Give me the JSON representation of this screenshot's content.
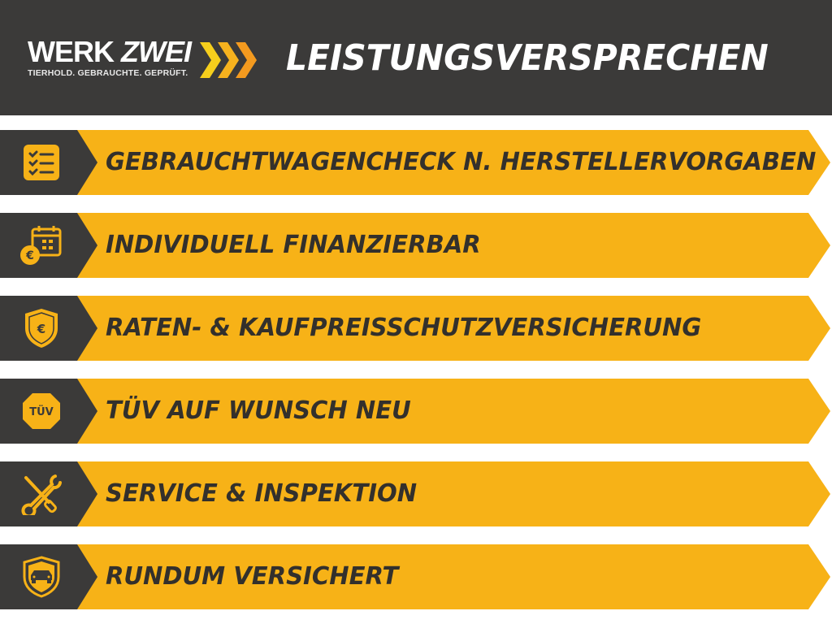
{
  "header": {
    "logo": {
      "word1": "WERK",
      "word2": "ZWEI",
      "tagline": "TIERHOLD. GEBRAUCHTE. GEPRÜFT."
    },
    "title": "LEISTUNGSVERSPRECHEN"
  },
  "colors": {
    "dark": "#3b3a39",
    "yellow": "#f7b217",
    "text": "#33302c"
  },
  "items": [
    {
      "label": "GEBRAUCHTWAGENCHECK N. HERSTELLERVORGABEN",
      "icon": "checklist-icon"
    },
    {
      "label": "INDIVIDUELL FINANZIERBAR",
      "icon": "calendar-euro-icon"
    },
    {
      "label": "RATEN- & KAUFPREISSCHUTZVERSICHERUNG",
      "icon": "shield-euro-icon"
    },
    {
      "label": "TÜV AUF WUNSCH NEU",
      "icon": "tuev-badge-icon",
      "badge_text": "TÜV"
    },
    {
      "label": "SERVICE & INSPEKTION",
      "icon": "wrench-screwdriver-icon"
    },
    {
      "label": "RUNDUM VERSICHERT",
      "icon": "shield-car-icon"
    }
  ]
}
